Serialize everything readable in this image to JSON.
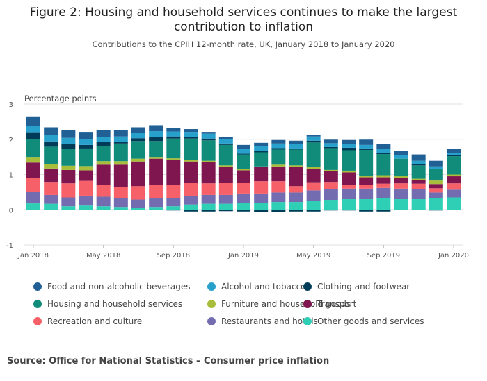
{
  "title": "Figure 2: Housing and household services continues to make the largest contribution to inflation",
  "subtitle": "Contributions to the CPIH 12-month rate, UK, January 2018 to January 2020",
  "source": "Source: Office for National Statistics – Consumer price inflation",
  "chart_data": {
    "type": "bar",
    "stacked": true,
    "ylabel": "Percentage points",
    "ylim": [
      -1,
      3
    ],
    "yticks": [
      -1,
      0,
      1,
      2,
      3
    ],
    "grid": true,
    "legend_position": "bottom",
    "categories": [
      "Jan 2018",
      "Feb 2018",
      "Mar 2018",
      "Apr 2018",
      "May 2018",
      "Jun 2018",
      "Jul 2018",
      "Aug 2018",
      "Sep 2018",
      "Oct 2018",
      "Nov 2018",
      "Dec 2018",
      "Jan 2019",
      "Feb 2019",
      "Mar 2019",
      "Apr 2019",
      "May 2019",
      "Jun 2019",
      "Jul 2019",
      "Aug 2019",
      "Sep 2019",
      "Oct 2019",
      "Nov 2019",
      "Dec 2019",
      "Jan 2020"
    ],
    "x_tick_labels": [
      "Jan 2018",
      "May 2018",
      "Sep 2018",
      "Jan 2019",
      "May 2019",
      "Sep 2019",
      "Jan 2020"
    ],
    "x_tick_indices": [
      0,
      4,
      8,
      12,
      16,
      20,
      24
    ],
    "series": [
      {
        "name": "Other goods and services",
        "color": "#2ecfb4",
        "values": [
          0.18,
          0.17,
          0.1,
          0.12,
          0.1,
          0.08,
          0.05,
          0.08,
          0.1,
          0.15,
          0.17,
          0.17,
          0.2,
          0.2,
          0.22,
          0.22,
          0.25,
          0.28,
          0.3,
          0.3,
          0.32,
          0.3,
          0.3,
          0.33,
          0.35
        ]
      },
      {
        "name": "Restaurants and hotels",
        "color": "#746cb1",
        "values": [
          0.32,
          0.25,
          0.25,
          0.28,
          0.27,
          0.26,
          0.24,
          0.24,
          0.23,
          0.24,
          0.25,
          0.25,
          0.26,
          0.26,
          0.27,
          0.27,
          0.3,
          0.3,
          0.3,
          0.3,
          0.3,
          0.3,
          0.28,
          0.16,
          0.22
        ]
      },
      {
        "name": "Recreation and culture",
        "color": "#f66068",
        "values": [
          0.4,
          0.37,
          0.4,
          0.42,
          0.33,
          0.3,
          0.38,
          0.38,
          0.38,
          0.38,
          0.33,
          0.35,
          0.31,
          0.35,
          0.32,
          0.18,
          0.23,
          0.21,
          0.1,
          0.1,
          0.12,
          0.15,
          0.16,
          0.12,
          0.18
        ]
      },
      {
        "name": "Transport",
        "color": "#801650",
        "values": [
          0.44,
          0.38,
          0.38,
          0.3,
          0.58,
          0.64,
          0.7,
          0.75,
          0.7,
          0.6,
          0.6,
          0.45,
          0.35,
          0.4,
          0.42,
          0.55,
          0.38,
          0.3,
          0.36,
          0.22,
          0.18,
          0.15,
          0.1,
          0.12,
          0.2
        ]
      },
      {
        "name": "Furniture and household goods",
        "color": "#a8bd3a",
        "values": [
          0.16,
          0.12,
          0.12,
          0.12,
          0.1,
          0.1,
          0.08,
          0.05,
          0.05,
          0.05,
          0.04,
          0.04,
          0.03,
          0.02,
          0.05,
          0.04,
          0.05,
          0.04,
          0.05,
          0.03,
          0.06,
          0.05,
          0.04,
          0.1,
          0.05
        ]
      },
      {
        "name": "Housing and household services",
        "color": "#118c7b",
        "values": [
          0.5,
          0.5,
          0.48,
          0.5,
          0.42,
          0.5,
          0.5,
          0.45,
          0.56,
          0.6,
          0.58,
          0.58,
          0.42,
          0.4,
          0.43,
          0.45,
          0.7,
          0.62,
          0.58,
          0.75,
          0.6,
          0.5,
          0.38,
          0.32,
          0.52
        ]
      },
      {
        "name": "Clothing and footwear",
        "color": "#003c57",
        "values": [
          0.2,
          0.15,
          0.14,
          0.1,
          0.12,
          0.05,
          0.08,
          0.12,
          0.06,
          0.05,
          0.05,
          0.04,
          0.02,
          0.05,
          0.04,
          0.03,
          0.05,
          0.03,
          0.07,
          0.04,
          0.04,
          -0.04,
          0.03,
          -0.05,
          0.03
        ]
      },
      {
        "name": "Alcohol and tobacco",
        "color": "#27a0cc",
        "values": [
          0.18,
          0.18,
          0.17,
          0.17,
          0.15,
          0.15,
          0.15,
          0.16,
          0.14,
          0.14,
          0.14,
          0.13,
          0.13,
          0.12,
          0.13,
          0.12,
          0.12,
          0.11,
          0.1,
          0.1,
          0.1,
          0.1,
          0.1,
          0.08,
          0.06
        ]
      },
      {
        "name": "Food and non-alcoholic beverages",
        "color": "#206095",
        "values": [
          0.27,
          0.22,
          0.22,
          0.2,
          0.2,
          0.18,
          0.16,
          0.17,
          0.1,
          0.08,
          0.05,
          0.05,
          0.12,
          0.1,
          0.1,
          0.1,
          0.04,
          0.1,
          0.12,
          0.15,
          0.14,
          0.12,
          0.18,
          0.16,
          0.12
        ]
      }
    ],
    "negative_values": {
      "Other goods and services": [
        0,
        0,
        0,
        0,
        0,
        0,
        0,
        0,
        -0.02,
        -0.05,
        -0.05,
        -0.04,
        -0.05,
        -0.06,
        -0.07,
        -0.05,
        -0.05,
        -0.02,
        -0.02,
        -0.05,
        -0.05,
        0,
        0,
        -0.02,
        0
      ]
    }
  }
}
